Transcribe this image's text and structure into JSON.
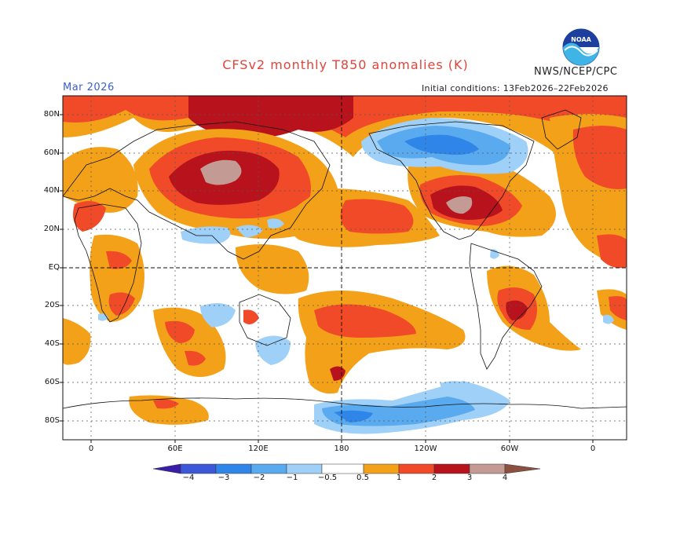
{
  "title": "CFSv2 monthly T850 anomalies (K)",
  "forecast_month": "Mar 2026",
  "agency": "NWS/NCEP/CPC",
  "logo_text": "NOAA",
  "initial_conditions": "Initial conditions: 13Feb2026–22Feb2026",
  "lat_labels": [
    "80N",
    "60N",
    "40N",
    "20N",
    "EQ",
    "20S",
    "40S",
    "60S",
    "80S"
  ],
  "lon_labels": [
    "0",
    "60E",
    "120E",
    "180",
    "120W",
    "60W",
    "0"
  ],
  "colorbar": {
    "labels": [
      "−4",
      "−3",
      "−2",
      "−1",
      "−0.5",
      "0.5",
      "1",
      "2",
      "3",
      "4"
    ],
    "colors": [
      "#3a1ea8",
      "#3c58d8",
      "#2f86e8",
      "#5aaaf0",
      "#9fd0f7",
      "#ffffff",
      "#f4a11a",
      "#f04a28",
      "#b8121c",
      "#c49a94",
      "#8c5040"
    ]
  }
}
